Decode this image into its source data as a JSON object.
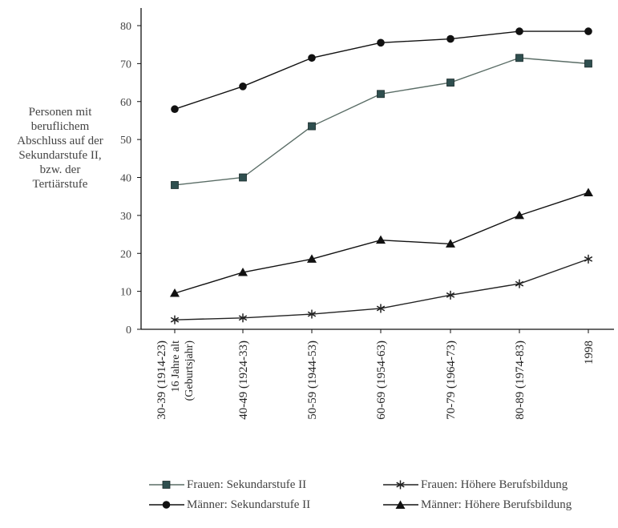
{
  "chart_data": {
    "type": "line",
    "ylabel_lines": [
      "Personen mit",
      "beruflichem",
      "Abschluss auf der",
      "Sekundarstufe II,",
      "bzw. der",
      "Tertiärstufe"
    ],
    "categories": [
      [
        "30-39 (1914-23)",
        "16 Jahre alt",
        "(Geburtsjahr)"
      ],
      [
        "40-49 (1924-33)"
      ],
      [
        "50-59 (1944-53)"
      ],
      [
        "60-69 (1954-63)"
      ],
      [
        "70-79 (1964-73)"
      ],
      [
        "80-89 (1974-83)"
      ],
      [
        "1998"
      ]
    ],
    "ylim": [
      0,
      80
    ],
    "yticks": [
      0,
      10,
      20,
      30,
      40,
      50,
      60,
      70,
      80
    ],
    "grid": false,
    "legend_position": "bottom",
    "series": [
      {
        "name": "Frauen: Sekundarstufe II",
        "marker": "square",
        "color": "#2f4f4f",
        "line_color": "#5a6d66",
        "values": [
          38,
          40,
          53.5,
          62,
          65,
          71.5,
          70
        ]
      },
      {
        "name": "Männer: Sekundarstufe II",
        "marker": "circle",
        "color": "#111111",
        "line_color": "#111111",
        "values": [
          58,
          64,
          71.5,
          75.5,
          76.5,
          78.5,
          78.5
        ]
      },
      {
        "name": "Frauen: Höhere Berufsbildung",
        "marker": "asterisk",
        "color": "#222222",
        "line_color": "#222222",
        "values": [
          2.5,
          3,
          4,
          5.5,
          9,
          12,
          18.5
        ]
      },
      {
        "name": "Männer: Höhere Berufsbildung",
        "marker": "triangle",
        "color": "#111111",
        "line_color": "#111111",
        "values": [
          9.5,
          15,
          18.5,
          23.5,
          22.5,
          30,
          36
        ]
      }
    ]
  }
}
